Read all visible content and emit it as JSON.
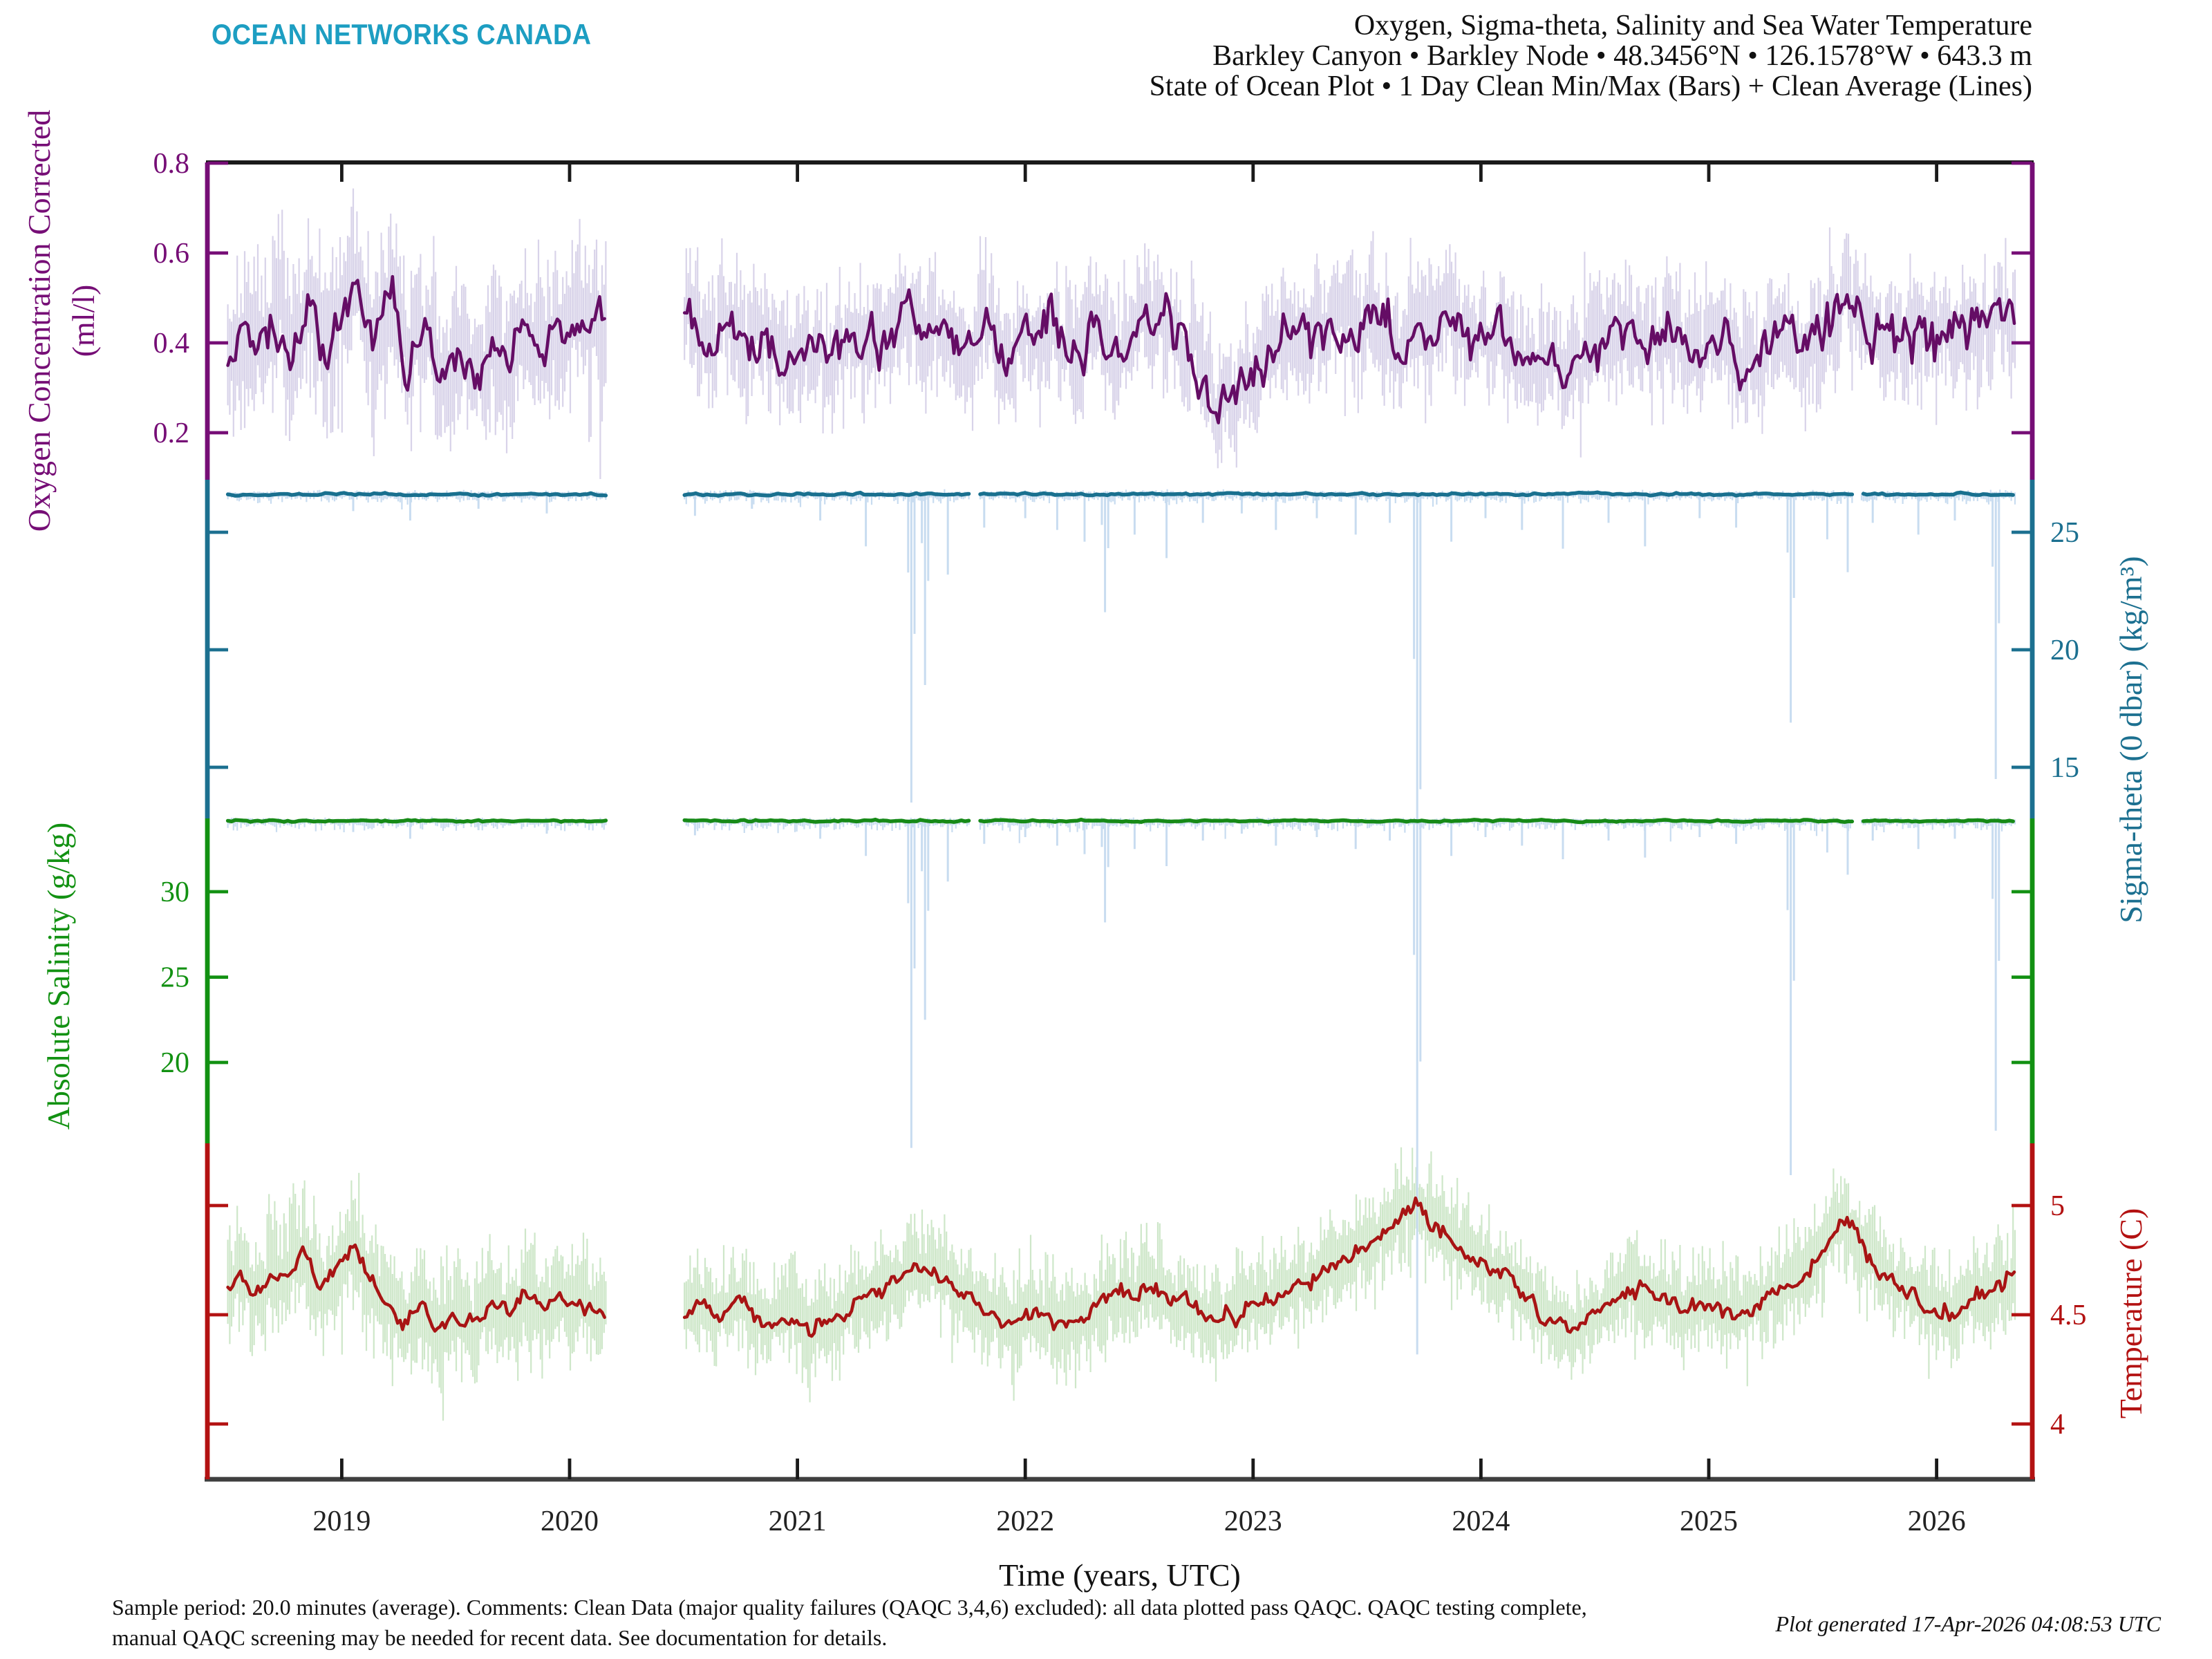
{
  "logo": {
    "text": "OCEAN NETWORKS CANADA",
    "color": "#1D9EC2"
  },
  "title": {
    "line1": "Oxygen, Sigma-theta, Salinity and Sea Water Temperature",
    "line2": "Barkley Canyon • Barkley Node • 48.3456°N • 126.1578°W • 643.3 m",
    "line3": "State of Ocean Plot • 1 Day Clean Min/Max (Bars) + Clean Average (Lines)"
  },
  "footer": {
    "line1": "Sample period: 20.0 minutes (average). Comments: Clean Data (major quality failures (QAQC 3,4,6) excluded): all data plotted pass QAQC. QAQC testing complete,",
    "line2": "manual QAQC screening may be needed for recent data. See documentation for details.",
    "generated": "Plot generated 17-Apr-2026 04:08:53 UTC"
  },
  "chart_data": {
    "type": "line",
    "title": "Oxygen, Sigma-theta, Salinity and Sea Water Temperature",
    "subtitle": "State of Ocean Plot • 1 Day Clean Min/Max (Bars) + Clean Average (Lines)",
    "xlabel": "Time (years, UTC)",
    "x_ticks": [
      2019,
      2020,
      2021,
      2022,
      2023,
      2024,
      2025,
      2026
    ],
    "x_range": [
      2018.41,
      2026.42
    ],
    "data_span": [
      2018.5,
      2026.35
    ],
    "data_gap": [
      2020.16,
      2020.5
    ],
    "sensor_mini_gaps": [
      [
        2021.76,
        2021.8
      ],
      [
        2025.63,
        2025.67
      ]
    ],
    "frame_color": "#1a1a1a",
    "x_axis_color": "#3f3f3f",
    "series": [
      {
        "id": "oxygen",
        "axis_label": "Oxygen Concentration Corrected",
        "axis_units": "(ml/l)",
        "axis_side": "left",
        "tick_values": [
          0.8,
          0.6,
          0.4,
          0.2
        ],
        "tick_labels": [
          "0.8",
          "0.6",
          "0.4",
          "0.2"
        ],
        "axis_range": [
          0.09,
          0.81
        ],
        "line_color": "#650d65",
        "bar_color": "#d8d3e9",
        "axis_color": "#760e76",
        "line_jitter": 0.045,
        "envelope_halfwidth": {
          "before_gap": 0.13,
          "after_gap": 0.095
        },
        "mean_keyframes": [
          [
            2018.5,
            0.36
          ],
          [
            2018.56,
            0.42
          ],
          [
            2018.62,
            0.37
          ],
          [
            2018.7,
            0.44
          ],
          [
            2018.78,
            0.38
          ],
          [
            2018.86,
            0.5
          ],
          [
            2018.93,
            0.4
          ],
          [
            2019.0,
            0.46
          ],
          [
            2019.07,
            0.54
          ],
          [
            2019.14,
            0.42
          ],
          [
            2019.21,
            0.5
          ],
          [
            2019.29,
            0.36
          ],
          [
            2019.37,
            0.44
          ],
          [
            2019.44,
            0.33
          ],
          [
            2019.51,
            0.38
          ],
          [
            2019.58,
            0.33
          ],
          [
            2019.66,
            0.4
          ],
          [
            2019.74,
            0.36
          ],
          [
            2019.81,
            0.44
          ],
          [
            2019.89,
            0.38
          ],
          [
            2019.96,
            0.42
          ],
          [
            2020.04,
            0.46
          ],
          [
            2020.12,
            0.44
          ],
          [
            2020.48,
            0.43
          ],
          [
            2020.54,
            0.47
          ],
          [
            2020.61,
            0.4
          ],
          [
            2020.68,
            0.44
          ],
          [
            2020.76,
            0.38
          ],
          [
            2020.86,
            0.42
          ],
          [
            2020.96,
            0.36
          ],
          [
            2021.06,
            0.4
          ],
          [
            2021.16,
            0.37
          ],
          [
            2021.26,
            0.43
          ],
          [
            2021.36,
            0.39
          ],
          [
            2021.46,
            0.46
          ],
          [
            2021.54,
            0.41
          ],
          [
            2021.62,
            0.44
          ],
          [
            2021.72,
            0.38
          ],
          [
            2021.82,
            0.43
          ],
          [
            2021.92,
            0.37
          ],
          [
            2022.02,
            0.41
          ],
          [
            2022.12,
            0.44
          ],
          [
            2022.22,
            0.38
          ],
          [
            2022.32,
            0.42
          ],
          [
            2022.42,
            0.36
          ],
          [
            2022.52,
            0.43
          ],
          [
            2022.62,
            0.46
          ],
          [
            2022.7,
            0.4
          ],
          [
            2022.78,
            0.34
          ],
          [
            2022.84,
            0.27
          ],
          [
            2022.9,
            0.26
          ],
          [
            2022.97,
            0.33
          ],
          [
            2023.06,
            0.4
          ],
          [
            2023.16,
            0.44
          ],
          [
            2023.26,
            0.4
          ],
          [
            2023.36,
            0.46
          ],
          [
            2023.46,
            0.41
          ],
          [
            2023.56,
            0.44
          ],
          [
            2023.66,
            0.39
          ],
          [
            2023.76,
            0.43
          ],
          [
            2023.86,
            0.46
          ],
          [
            2023.96,
            0.4
          ],
          [
            2024.06,
            0.43
          ],
          [
            2024.16,
            0.38
          ],
          [
            2024.26,
            0.34
          ],
          [
            2024.36,
            0.32
          ],
          [
            2024.46,
            0.37
          ],
          [
            2024.56,
            0.41
          ],
          [
            2024.66,
            0.44
          ],
          [
            2024.76,
            0.39
          ],
          [
            2024.86,
            0.43
          ],
          [
            2024.96,
            0.38
          ],
          [
            2025.06,
            0.41
          ],
          [
            2025.16,
            0.36
          ],
          [
            2025.26,
            0.39
          ],
          [
            2025.36,
            0.43
          ],
          [
            2025.46,
            0.38
          ],
          [
            2025.56,
            0.46
          ],
          [
            2025.63,
            0.5
          ],
          [
            2025.72,
            0.44
          ],
          [
            2025.82,
            0.4
          ],
          [
            2025.92,
            0.43
          ],
          [
            2026.02,
            0.38
          ],
          [
            2026.12,
            0.41
          ],
          [
            2026.22,
            0.44
          ],
          [
            2026.35,
            0.45
          ]
        ]
      },
      {
        "id": "sigma_theta",
        "axis_label": "Sigma-theta (0 dbar) (kg/m³)",
        "axis_units": "",
        "axis_side": "right",
        "tick_values": [
          25,
          20,
          15
        ],
        "tick_labels": [
          "25",
          "20",
          "15"
        ],
        "axis_range": [
          12.8,
          27.25
        ],
        "line_color": "#19708f",
        "bar_color": "#c8dcf0",
        "axis_color": "#1c7090",
        "mean_level": 26.62,
        "line_jitter": 0.045,
        "bar_up": [
          0.04,
          0.1
        ],
        "bar_down": [
          0.08,
          0.3,
          2.0
        ]
      },
      {
        "id": "salinity",
        "axis_label": "Absolute Salinity (g/kg)",
        "axis_units": "",
        "axis_side": "left",
        "tick_values": [
          30,
          25,
          20
        ],
        "tick_labels": [
          "30",
          "25",
          "20"
        ],
        "axis_range": [
          15.3,
          34.3
        ],
        "line_color": "#178a17",
        "bar_color": "#c8dcf0",
        "axis_color": "#129112",
        "mean_level": 34.15,
        "line_jitter": 0.05,
        "bar_up": [
          0.05,
          0.12
        ],
        "bar_down": [
          0.1,
          0.45,
          3.0
        ]
      },
      {
        "id": "temperature",
        "axis_label": "Temperature (C)",
        "axis_units": "",
        "axis_side": "right",
        "tick_values": [
          5,
          4.5,
          4
        ],
        "tick_labels": [
          "5",
          "4.5",
          "4"
        ],
        "axis_range": [
          3.75,
          5.28
        ],
        "line_color": "#a81414",
        "bar_color": "#cee7c9",
        "axis_color": "#b31212",
        "line_jitter": 0.035,
        "envelope_halfwidth": {
          "before_gap": 0.19,
          "after_gap": 0.165
        },
        "mean_keyframes": [
          [
            2018.5,
            4.62
          ],
          [
            2018.56,
            4.68
          ],
          [
            2018.62,
            4.58
          ],
          [
            2018.69,
            4.72
          ],
          [
            2018.76,
            4.65
          ],
          [
            2018.83,
            4.78
          ],
          [
            2018.9,
            4.6
          ],
          [
            2018.97,
            4.72
          ],
          [
            2019.05,
            4.8
          ],
          [
            2019.12,
            4.65
          ],
          [
            2019.2,
            4.55
          ],
          [
            2019.28,
            4.48
          ],
          [
            2019.35,
            4.56
          ],
          [
            2019.42,
            4.42
          ],
          [
            2019.5,
            4.5
          ],
          [
            2019.58,
            4.44
          ],
          [
            2019.65,
            4.55
          ],
          [
            2019.72,
            4.5
          ],
          [
            2019.8,
            4.6
          ],
          [
            2019.88,
            4.52
          ],
          [
            2019.95,
            4.58
          ],
          [
            2020.04,
            4.55
          ],
          [
            2020.12,
            4.52
          ],
          [
            2020.48,
            4.45
          ],
          [
            2020.56,
            4.55
          ],
          [
            2020.65,
            4.48
          ],
          [
            2020.75,
            4.58
          ],
          [
            2020.85,
            4.45
          ],
          [
            2020.95,
            4.5
          ],
          [
            2021.05,
            4.42
          ],
          [
            2021.15,
            4.48
          ],
          [
            2021.25,
            4.55
          ],
          [
            2021.35,
            4.6
          ],
          [
            2021.45,
            4.68
          ],
          [
            2021.55,
            4.72
          ],
          [
            2021.65,
            4.66
          ],
          [
            2021.75,
            4.58
          ],
          [
            2021.85,
            4.5
          ],
          [
            2021.95,
            4.46
          ],
          [
            2022.05,
            4.52
          ],
          [
            2022.15,
            4.46
          ],
          [
            2022.25,
            4.5
          ],
          [
            2022.35,
            4.56
          ],
          [
            2022.45,
            4.6
          ],
          [
            2022.55,
            4.65
          ],
          [
            2022.65,
            4.58
          ],
          [
            2022.75,
            4.52
          ],
          [
            2022.85,
            4.46
          ],
          [
            2022.95,
            4.52
          ],
          [
            2023.05,
            4.58
          ],
          [
            2023.15,
            4.62
          ],
          [
            2023.25,
            4.66
          ],
          [
            2023.35,
            4.72
          ],
          [
            2023.45,
            4.78
          ],
          [
            2023.55,
            4.86
          ],
          [
            2023.65,
            4.95
          ],
          [
            2023.72,
            5.0
          ],
          [
            2023.8,
            4.92
          ],
          [
            2023.9,
            4.82
          ],
          [
            2024.0,
            4.74
          ],
          [
            2024.1,
            4.68
          ],
          [
            2024.2,
            4.58
          ],
          [
            2024.3,
            4.48
          ],
          [
            2024.4,
            4.42
          ],
          [
            2024.5,
            4.5
          ],
          [
            2024.6,
            4.58
          ],
          [
            2024.7,
            4.64
          ],
          [
            2024.8,
            4.58
          ],
          [
            2024.9,
            4.52
          ],
          [
            2025.0,
            4.56
          ],
          [
            2025.1,
            4.48
          ],
          [
            2025.2,
            4.54
          ],
          [
            2025.3,
            4.6
          ],
          [
            2025.4,
            4.68
          ],
          [
            2025.5,
            4.8
          ],
          [
            2025.58,
            4.94
          ],
          [
            2025.65,
            4.85
          ],
          [
            2025.75,
            4.7
          ],
          [
            2025.85,
            4.62
          ],
          [
            2025.95,
            4.55
          ],
          [
            2026.05,
            4.5
          ],
          [
            2026.15,
            4.58
          ],
          [
            2026.25,
            4.62
          ],
          [
            2026.35,
            4.68
          ]
        ]
      }
    ],
    "spike_events": [
      {
        "x": 2019.05,
        "sigma_min": 25.9,
        "salinity_min": 33.5
      },
      {
        "x": 2019.3,
        "sigma_min": 25.5,
        "salinity_min": 33.1
      },
      {
        "x": 2019.6,
        "sigma_min": 26.0,
        "salinity_min": 33.6
      },
      {
        "x": 2019.9,
        "sigma_min": 25.8,
        "salinity_min": 33.4
      },
      {
        "x": 2020.55,
        "sigma_min": 25.7,
        "salinity_min": 33.3
      },
      {
        "x": 2020.8,
        "sigma_min": 26.0,
        "salinity_min": 33.6
      },
      {
        "x": 2021.1,
        "sigma_min": 25.5,
        "salinity_min": 33.1
      },
      {
        "x": 2021.3,
        "sigma_min": 24.4,
        "salinity_min": 32.1
      },
      {
        "x": 2021.5,
        "sigma_min": 13.5,
        "salinity_min": 15.0
      },
      {
        "x": 2021.56,
        "sigma_min": 18.5,
        "salinity_min": 22.5
      },
      {
        "x": 2021.66,
        "sigma_min": 23.2,
        "salinity_min": 30.6
      },
      {
        "x": 2021.82,
        "sigma_min": 25.2,
        "salinity_min": 32.8
      },
      {
        "x": 2022.0,
        "sigma_min": 25.6,
        "salinity_min": 33.2
      },
      {
        "x": 2022.14,
        "sigma_min": 25.1,
        "salinity_min": 32.7
      },
      {
        "x": 2022.26,
        "sigma_min": 24.6,
        "salinity_min": 32.2
      },
      {
        "x": 2022.35,
        "sigma_min": 21.6,
        "salinity_min": 28.2
      },
      {
        "x": 2022.48,
        "sigma_min": 24.9,
        "salinity_min": 32.5
      },
      {
        "x": 2022.62,
        "sigma_min": 23.9,
        "salinity_min": 31.5
      },
      {
        "x": 2022.78,
        "sigma_min": 25.4,
        "salinity_min": 33.0
      },
      {
        "x": 2022.95,
        "sigma_min": 25.8,
        "salinity_min": 33.4
      },
      {
        "x": 2023.1,
        "sigma_min": 25.1,
        "salinity_min": 32.7
      },
      {
        "x": 2023.28,
        "sigma_min": 25.6,
        "salinity_min": 33.2
      },
      {
        "x": 2023.45,
        "sigma_min": 24.9,
        "salinity_min": 32.5
      },
      {
        "x": 2023.6,
        "sigma_min": 25.4,
        "salinity_min": 33.0
      },
      {
        "x": 2023.72,
        "sigma_min": -1.2,
        "salinity_min": 2.9
      },
      {
        "x": 2023.87,
        "sigma_min": 24.6,
        "salinity_min": 32.1
      },
      {
        "x": 2024.02,
        "sigma_min": 25.6,
        "salinity_min": 33.2
      },
      {
        "x": 2024.18,
        "sigma_min": 25.1,
        "salinity_min": 32.7
      },
      {
        "x": 2024.36,
        "sigma_min": 24.3,
        "salinity_min": 31.9
      },
      {
        "x": 2024.56,
        "sigma_min": 25.4,
        "salinity_min": 33.0
      },
      {
        "x": 2024.72,
        "sigma_min": 24.4,
        "salinity_min": 32.0
      },
      {
        "x": 2024.96,
        "sigma_min": 25.6,
        "salinity_min": 33.2
      },
      {
        "x": 2025.12,
        "sigma_min": 25.2,
        "salinity_min": 32.8
      },
      {
        "x": 2025.36,
        "sigma_min": 16.9,
        "salinity_min": 13.4
      },
      {
        "x": 2025.52,
        "sigma_min": 24.7,
        "salinity_min": 32.3
      },
      {
        "x": 2025.61,
        "sigma_min": 23.3,
        "salinity_min": 31.0
      },
      {
        "x": 2025.72,
        "sigma_min": 25.4,
        "salinity_min": 33.0
      },
      {
        "x": 2025.92,
        "sigma_min": 24.9,
        "salinity_min": 32.5
      },
      {
        "x": 2026.08,
        "sigma_min": 25.5,
        "salinity_min": 33.1
      },
      {
        "x": 2026.26,
        "sigma_min": 14.5,
        "salinity_min": 16.0
      }
    ]
  }
}
